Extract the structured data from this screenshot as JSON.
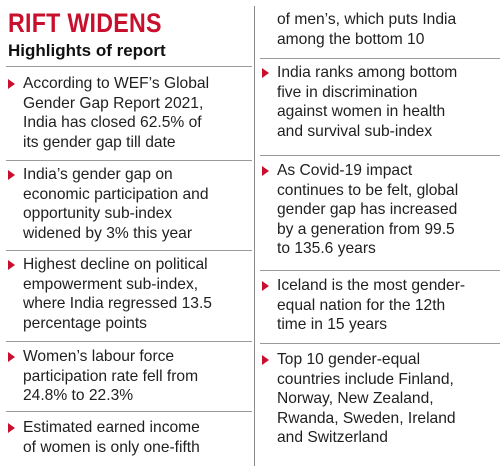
{
  "title": "RIFT WIDENS",
  "subtitle": "Highlights of report",
  "accent_color": "#c8102e",
  "bullet_icon": "triangle-right-bullet",
  "left_items": [
    {
      "text": "According to WEF’s Global\nGender Gap Report 2021,\nIndia has closed 62.5% of\nits gender gap till date"
    },
    {
      "text": "India’s gender gap on\neconomic participation and\nopportunity sub-index\nwidened by 3% this year"
    },
    {
      "text": "Highest decline on political\nempowerment sub-index,\nwhere India regressed 13.5\npercentage points"
    },
    {
      "text": "Women’s labour force\nparticipation rate fell from\n24.8% to 22.3%"
    },
    {
      "text": "Estimated earned income\nof women is only one-fifth"
    }
  ],
  "right_continuation": "of men’s, which puts India\namong the bottom 10",
  "right_items": [
    {
      "text": "India ranks among bottom\nfive in discrimination\nagainst women in health\nand survival sub-index"
    },
    {
      "text": "As Covid-19 impact\ncontinues to be felt, global\ngender gap has increased\nby a generation from 99.5\nto 135.6 years"
    },
    {
      "text": "Iceland is the most gender-\nequal nation for the 12th\ntime in 15 years"
    },
    {
      "text": "Top 10 gender-equal\ncountries include Finland,\nNorway, New Zealand,\nRwanda, Sweden, Ireland\nand Switzerland"
    }
  ]
}
